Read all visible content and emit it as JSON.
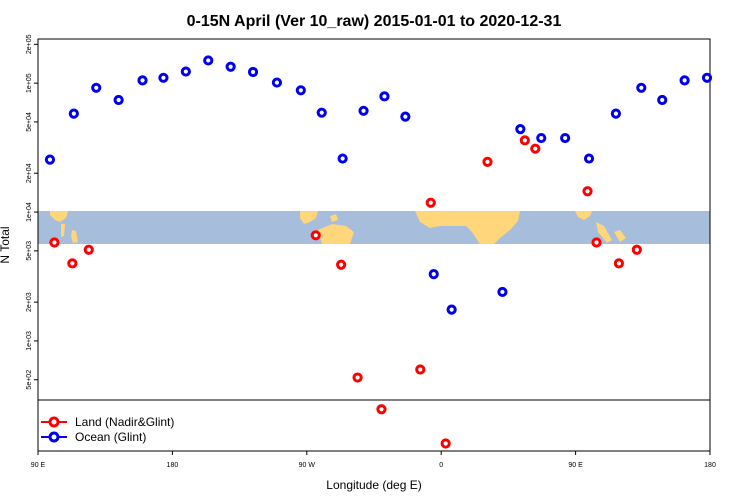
{
  "chart_data": {
    "type": "scatter",
    "title": "0-15N April (Ver 10_raw)   2015-01-01 to 2020-12-31",
    "xlabel": "Longitude (deg E)",
    "ylabel": "N Total",
    "x_ticks": [
      {
        "value": 90,
        "label": "90 E"
      },
      {
        "value": 180,
        "label": "180"
      },
      {
        "value": 270,
        "label": "90 W"
      },
      {
        "value": 360,
        "label": "0"
      },
      {
        "value": 450,
        "label": "90 E"
      },
      {
        "value": 540,
        "label": "180"
      }
    ],
    "y_ticks": [
      {
        "value": 500,
        "label": "5e+02"
      },
      {
        "value": 1000,
        "label": "1e+03"
      },
      {
        "value": 2000,
        "label": "2e+03"
      },
      {
        "value": 5000,
        "label": "5e+03"
      },
      {
        "value": 10000,
        "label": "1e+04"
      },
      {
        "value": 20000,
        "label": "2e+04"
      },
      {
        "value": 50000,
        "label": "5e+04"
      },
      {
        "value": 100000,
        "label": "1e+05"
      },
      {
        "value": 200000,
        "label": "2e+05"
      }
    ],
    "xlim": [
      90,
      540
    ],
    "ylim_log": [
      140,
      220000
    ],
    "y_scale": "log",
    "grid": false,
    "legend_position": "bottom-left",
    "series": [
      {
        "name": "Land (Nadir&Glint)",
        "color": "#ff0000",
        "points": [
          {
            "x": 101,
            "y": 5800
          },
          {
            "x": 113,
            "y": 4000
          },
          {
            "x": 124,
            "y": 5100
          },
          {
            "x": 276,
            "y": 6600
          },
          {
            "x": 293,
            "y": 3900
          },
          {
            "x": 304,
            "y": 520
          },
          {
            "x": 320,
            "y": 295
          },
          {
            "x": 346,
            "y": 600
          },
          {
            "x": 353,
            "y": 11800
          },
          {
            "x": 363,
            "y": 160
          },
          {
            "x": 391,
            "y": 24500
          },
          {
            "x": 416,
            "y": 36000
          },
          {
            "x": 423,
            "y": 31000
          },
          {
            "x": 458,
            "y": 14500
          },
          {
            "x": 464,
            "y": 5800
          },
          {
            "x": 479,
            "y": 4000
          },
          {
            "x": 491,
            "y": 5100
          }
        ]
      },
      {
        "name": "Ocean (Glint)",
        "color": "#0000ee",
        "points": [
          {
            "x": 98,
            "y": 25500
          },
          {
            "x": 114,
            "y": 58000
          },
          {
            "x": 129,
            "y": 92000
          },
          {
            "x": 144,
            "y": 74000
          },
          {
            "x": 160,
            "y": 105000
          },
          {
            "x": 174,
            "y": 110000
          },
          {
            "x": 189,
            "y": 123000
          },
          {
            "x": 204,
            "y": 150000
          },
          {
            "x": 219,
            "y": 134000
          },
          {
            "x": 234,
            "y": 122000
          },
          {
            "x": 250,
            "y": 101000
          },
          {
            "x": 266,
            "y": 88000
          },
          {
            "x": 280,
            "y": 59000
          },
          {
            "x": 294,
            "y": 26000
          },
          {
            "x": 308,
            "y": 61000
          },
          {
            "x": 322,
            "y": 79000
          },
          {
            "x": 336,
            "y": 55000
          },
          {
            "x": 355,
            "y": 3300
          },
          {
            "x": 367,
            "y": 1750
          },
          {
            "x": 401,
            "y": 2400
          },
          {
            "x": 413,
            "y": 44000
          },
          {
            "x": 427,
            "y": 37500
          },
          {
            "x": 443,
            "y": 37500
          },
          {
            "x": 459,
            "y": 26000
          },
          {
            "x": 477,
            "y": 58000
          },
          {
            "x": 494,
            "y": 92000
          },
          {
            "x": 508,
            "y": 74000
          },
          {
            "x": 523,
            "y": 105000
          },
          {
            "x": 538,
            "y": 110000
          }
        ]
      }
    ],
    "background_band": {
      "description": "world map strip",
      "ocean_color": "#a6bddb",
      "land_color": "#ffd67a"
    }
  }
}
